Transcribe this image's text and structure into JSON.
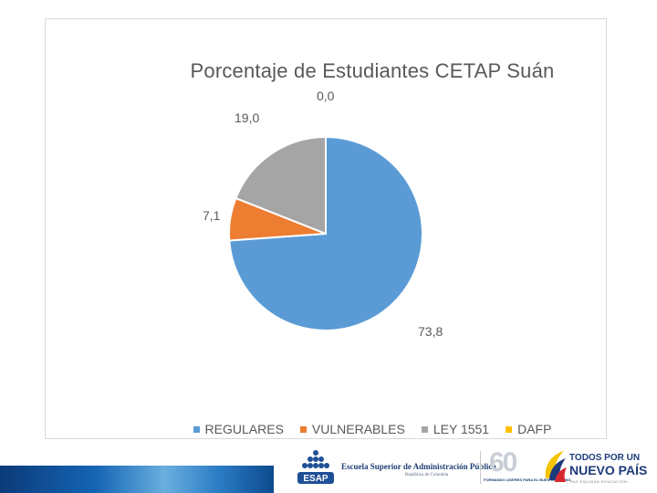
{
  "chart_data": {
    "type": "pie",
    "title": "Porcentaje de Estudiantes CETAP Suán",
    "categories": [
      "REGULARES",
      "VULNERABLES",
      "LEY 1551",
      "DAFP"
    ],
    "values": [
      73.8,
      7.1,
      19.0,
      0.0
    ],
    "data_labels": [
      "73,8",
      "7,1",
      "19,0",
      "0,0"
    ],
    "colors": [
      "#5b9bd5",
      "#ed7d31",
      "#a5a5a5",
      "#ffc000"
    ],
    "legend_position": "bottom",
    "start_angle": "top, clockwise"
  },
  "footer": {
    "esap_name": "Escuela Superior de Administración Pública",
    "esap_country": "República de Colombia",
    "esap_acronym": "ESAP",
    "anniversary_number": "60",
    "anniversary_tag": "FORMANDO LÍDERES PARA EL BUEN GOBIERNO",
    "gov_line1": "TODOS POR UN",
    "gov_line2": "NUEVO PAÍS",
    "gov_motto": "PAZ  EQUIDAD  EDUCACIÓN"
  }
}
